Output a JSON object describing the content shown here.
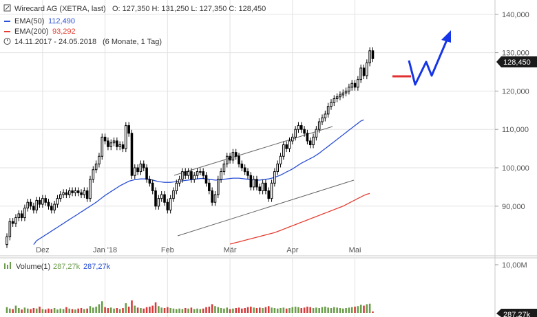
{
  "header": {
    "name": "Wirecard AG (XETRA, last)",
    "ohlc": "O: 127,350  H: 131,250  L: 127,350  C: 128,450",
    "ema50_label": "EMA(50)",
    "ema50_value": "112,490",
    "ema200_label": "EMA(200)",
    "ema200_value": "93,292",
    "period": "14.11.2017 - 24.05.2018",
    "period_note": "(6 Monate, 1 Tag)"
  },
  "volume_header": {
    "label": "Volume(1)",
    "v1": "287,27k",
    "v2": "287,27k"
  },
  "last_price_badge": "128,450",
  "volume_badge": "287,27k",
  "colors": {
    "candle": "#000000",
    "ema50": "#2a4fd6",
    "ema200": "#e43d30",
    "volume_up": "#6a9c4a",
    "volume_down": "#d63b3b",
    "forecast_arrow": "#1535e6",
    "target_bar": "#e23030",
    "channel": "#666666"
  },
  "chart_data": {
    "type": "candlestick",
    "y_ticks": [
      "90,000",
      "100,000",
      "110,000",
      "120,000",
      "130,000",
      "140,000"
    ],
    "ylim": [
      80,
      145
    ],
    "x_labels": [
      "Dez",
      "Jan '18",
      "Feb",
      "Mär",
      "Apr",
      "Mai"
    ],
    "vol_tick": "10,00M",
    "x_domain": [
      0,
      134
    ],
    "x_label_pos": [
      12,
      33,
      54,
      75,
      96,
      117
    ],
    "close": [
      82,
      86,
      85.5,
      87,
      88,
      87,
      89.5,
      91,
      90,
      89,
      91.5,
      90.5,
      92,
      91,
      90,
      89,
      90.5,
      92,
      93,
      93.5,
      93,
      94,
      93.5,
      94,
      93.5,
      93,
      94,
      92,
      97,
      99.5,
      101,
      103,
      108,
      107,
      105.5,
      106.5,
      107,
      105.5,
      106,
      105,
      111,
      109,
      98,
      100,
      99,
      101,
      100,
      97,
      96,
      94,
      90,
      92,
      93,
      91,
      89,
      92,
      94,
      96,
      97,
      99,
      98,
      99,
      97,
      98,
      99,
      99,
      98,
      96,
      94,
      91,
      93,
      97,
      99,
      101,
      103,
      102,
      104,
      103,
      101,
      100,
      99,
      98,
      95,
      97,
      95,
      94,
      96,
      94,
      92,
      96,
      99,
      101,
      103,
      106,
      105,
      107,
      108,
      110,
      111,
      110,
      109,
      107,
      106,
      108,
      110,
      112,
      113,
      114,
      116,
      117,
      118,
      118.5,
      119,
      119.5,
      120,
      121,
      122,
      121,
      123,
      126,
      124,
      127.35,
      130.5,
      128.45
    ],
    "ema50": [
      null,
      null,
      null,
      null,
      null,
      null,
      null,
      null,
      null,
      80,
      81,
      81.5,
      82,
      82.5,
      83,
      83.5,
      84,
      84.5,
      85,
      85.5,
      86,
      86.5,
      87,
      87.5,
      88,
      88.5,
      89,
      89.5,
      90,
      90.5,
      91,
      91.6,
      92.2,
      92.8,
      93.3,
      93.8,
      94.3,
      94.8,
      95.3,
      95.7,
      96.1,
      96.5,
      96.7,
      96.9,
      97,
      97.1,
      97.1,
      97.1,
      97,
      96.8,
      96.6,
      96.4,
      96.3,
      96.2,
      96.2,
      96.2,
      96.3,
      96.4,
      96.5,
      96.6,
      96.7,
      96.8,
      96.9,
      97,
      97.1,
      97.2,
      97.2,
      97.1,
      97,
      96.9,
      96.8,
      96.8,
      96.9,
      97,
      97.1,
      97.2,
      97.3,
      97.3,
      97.3,
      97.2,
      97.1,
      97,
      96.9,
      96.8,
      96.8,
      96.8,
      96.9,
      97,
      97.1,
      97.3,
      97.5,
      97.8,
      98.1,
      98.5,
      98.9,
      99.3,
      99.7,
      100.2,
      100.7,
      101.2,
      101.6,
      102,
      102.4,
      102.8,
      103.3,
      103.8,
      104.4,
      105,
      105.6,
      106.2,
      106.8,
      107.4,
      108,
      108.6,
      109.2,
      109.8,
      110.4,
      111,
      111.6,
      112.2,
      112.49
    ],
    "ema200": [
      null,
      null,
      null,
      null,
      null,
      null,
      null,
      null,
      null,
      null,
      null,
      null,
      null,
      null,
      null,
      null,
      null,
      null,
      null,
      null,
      null,
      null,
      null,
      null,
      null,
      null,
      null,
      null,
      null,
      null,
      null,
      null,
      null,
      null,
      null,
      null,
      null,
      null,
      null,
      null,
      null,
      null,
      null,
      null,
      null,
      null,
      null,
      null,
      null,
      null,
      null,
      null,
      null,
      null,
      null,
      null,
      null,
      null,
      null,
      null,
      null,
      null,
      null,
      null,
      null,
      null,
      null,
      null,
      null,
      null,
      null,
      null,
      null,
      null,
      null,
      80.1,
      80.3,
      80.5,
      80.7,
      80.9,
      81.1,
      81.3,
      81.5,
      81.7,
      81.9,
      82.1,
      82.3,
      82.5,
      82.7,
      82.9,
      83.1,
      83.4,
      83.7,
      84,
      84.3,
      84.6,
      84.9,
      85.2,
      85.5,
      85.8,
      86.1,
      86.4,
      86.7,
      87,
      87.3,
      87.6,
      87.9,
      88.2,
      88.5,
      88.8,
      89.1,
      89.4,
      89.7,
      90,
      90.4,
      90.8,
      91.2,
      91.6,
      92,
      92.4,
      92.8,
      93.1,
      93.292
    ],
    "volume": [
      1.2,
      0.9,
      0.8,
      1.5,
      1.0,
      0.7,
      1.1,
      0.9,
      0.8,
      1.0,
      0.9,
      1.3,
      0.8,
      0.7,
      0.9,
      0.8,
      1.0,
      0.7,
      0.9,
      0.8,
      1.2,
      0.9,
      0.8,
      0.7,
      0.9,
      1.0,
      0.8,
      0.9,
      1.4,
      1.1,
      1.3,
      1.8,
      2.4,
      1.2,
      1.0,
      1.1,
      0.9,
      1.0,
      0.8,
      1.0,
      2.0,
      1.3,
      2.6,
      1.5,
      1.1,
      1.0,
      0.9,
      1.2,
      1.3,
      1.5,
      2.2,
      1.4,
      1.1,
      1.0,
      1.2,
      1.0,
      0.9,
      0.8,
      0.9,
      0.8,
      1.0,
      0.9,
      1.1,
      0.8,
      0.9,
      0.8,
      0.9,
      1.2,
      1.3,
      1.8,
      1.4,
      1.2,
      1.0,
      0.9,
      1.1,
      0.8,
      0.9,
      1.0,
      1.1,
      0.9,
      1.0,
      1.2,
      1.3,
      1.1,
      1.0,
      1.1,
      1.0,
      1.2,
      1.4,
      1.1,
      1.0,
      0.9,
      1.0,
      1.1,
      0.9,
      1.0,
      1.2,
      1.3,
      1.2,
      1.0,
      1.1,
      1.3,
      1.2,
      1.0,
      1.1,
      1.0,
      1.2,
      1.3,
      1.1,
      1.0,
      1.2,
      1.1,
      1.0,
      0.9,
      1.0,
      1.1,
      1.2,
      1.3,
      1.4,
      1.7,
      1.5,
      1.8,
      1.9,
      0.3
    ]
  }
}
